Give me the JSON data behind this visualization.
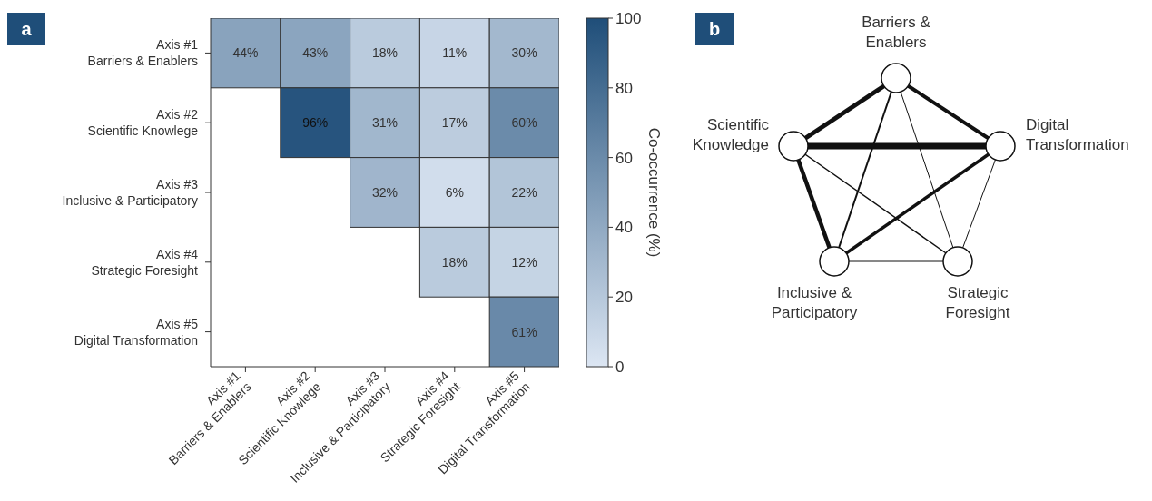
{
  "chart_data": [
    {
      "type": "heatmap",
      "annotations": [
        "a"
      ],
      "clabel": "Co-occurrence (%)",
      "categories": [
        "Axis #1\nBarriers & Enablers",
        "Axis #2\nScientific Knowlege",
        "Axis #3\nInclusive & Participatory",
        "Axis #4\nStrategic Foresight",
        "Axis #5\nDigital Transformation"
      ],
      "y_categories": [
        "Axis #1\nBarriers & Enablers",
        "Axis #2\nScientific Knowlege",
        "Axis #3\nInclusive & Participatory",
        "Axis #4\nStrategic Foresight",
        "Axis #5\nDigital Transformation"
      ],
      "cells": [
        [
          44,
          43,
          18,
          11,
          30
        ],
        [
          null,
          96,
          31,
          17,
          60
        ],
        [
          null,
          null,
          32,
          6,
          22
        ],
        [
          null,
          null,
          null,
          18,
          12
        ],
        [
          null,
          null,
          null,
          null,
          61
        ]
      ],
      "cell_labels": [
        [
          "44%",
          "43%",
          "18%",
          "11%",
          "30%"
        ],
        [
          null,
          "96%",
          "31%",
          "17%",
          "60%"
        ],
        [
          null,
          null,
          "32%",
          "6%",
          "22%"
        ],
        [
          null,
          null,
          null,
          "18%",
          "12%"
        ],
        [
          null,
          null,
          null,
          null,
          "61%"
        ]
      ],
      "clim": [
        0,
        100
      ],
      "cticks": [
        0,
        20,
        40,
        60,
        80,
        100
      ]
    },
    {
      "type": "other",
      "annotations": [
        "b",
        "Barriers &\nEnablers",
        "Scientific\nKnowledge",
        "Digital\nTransformation",
        "Inclusive &\nParticipatory",
        "Strategic\nForesight"
      ]
    }
  ]
}
